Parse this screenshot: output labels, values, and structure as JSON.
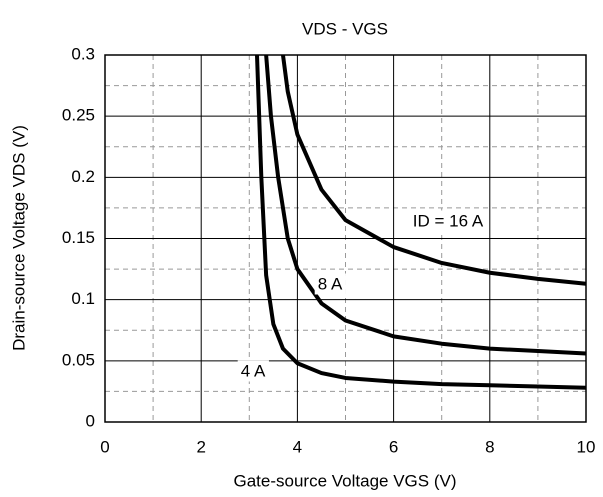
{
  "chart_data": {
    "type": "line",
    "title": "VDS - VGS",
    "xlabel": "Gate-source Voltage VGS (V)",
    "ylabel": "Drain-source Voltage VDS (V)",
    "xlim": [
      0,
      10
    ],
    "xticks": [
      0,
      2,
      4,
      6,
      8,
      10
    ],
    "ylim": [
      0,
      0.3
    ],
    "yticks": [
      0,
      0.05,
      0.1,
      0.15,
      0.2,
      0.25,
      0.3
    ],
    "grid": true,
    "series": [
      {
        "name": "ID = 16 A",
        "color": "#000000",
        "x": [
          3.7,
          3.8,
          4,
          4.5,
          5,
          6,
          7,
          8,
          9,
          10
        ],
        "values": [
          0.3,
          0.27,
          0.235,
          0.19,
          0.165,
          0.143,
          0.13,
          0.122,
          0.117,
          0.113
        ]
      },
      {
        "name": "8 A",
        "color": "#000000",
        "x": [
          3.35,
          3.45,
          3.6,
          3.8,
          4,
          4.5,
          5,
          6,
          7,
          8,
          9,
          10
        ],
        "values": [
          0.3,
          0.25,
          0.2,
          0.15,
          0.125,
          0.097,
          0.083,
          0.07,
          0.064,
          0.06,
          0.058,
          0.056
        ]
      },
      {
        "name": "4 A",
        "color": "#000000",
        "x": [
          3.16,
          3.25,
          3.35,
          3.5,
          3.7,
          4,
          4.5,
          5,
          6,
          7,
          8,
          9,
          10
        ],
        "values": [
          0.3,
          0.2,
          0.12,
          0.08,
          0.06,
          0.048,
          0.04,
          0.036,
          0.033,
          0.031,
          0.03,
          0.029,
          0.028
        ]
      }
    ]
  }
}
